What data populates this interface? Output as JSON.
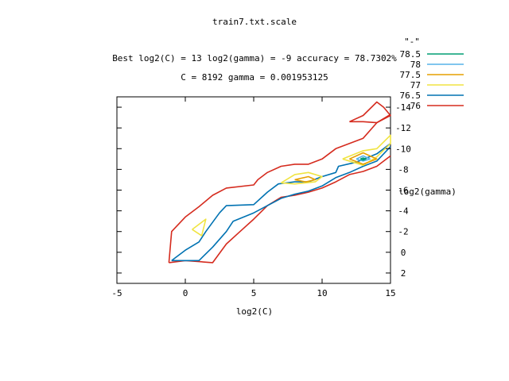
{
  "chart_data": {
    "type": "contour",
    "title": "train7.txt.scale",
    "subtitle_line1": "Best log2(C) = 13  log2(gamma) = -9  accuracy = 78.7302%",
    "subtitle_line2": "C = 8192  gamma = 0.001953125",
    "xlabel": "log2(C)",
    "ylabel": "log2(gamma)",
    "xlim": [
      -5,
      15
    ],
    "ylim": [
      -15,
      3
    ],
    "x_ticks": [
      -5,
      0,
      5,
      10,
      15
    ],
    "y_ticks": [
      -14,
      -12,
      -10,
      -8,
      -6,
      -4,
      -2,
      0,
      2
    ],
    "y_tick_labels": [
      "-14",
      "-12",
      "-10",
      "-8",
      "-6",
      "-4",
      "-2",
      "0",
      "2"
    ],
    "legend_title": "\"-\"",
    "legend": [
      {
        "label": "78.5",
        "color": "#009e73"
      },
      {
        "label": "78",
        "color": "#56b4e9"
      },
      {
        "label": "77.5",
        "color": "#e69f00"
      },
      {
        "label": "77",
        "color": "#f0e442"
      },
      {
        "label": "76.5",
        "color": "#0072b2"
      },
      {
        "label": "76",
        "color": "#d52b1e"
      }
    ],
    "contours": [
      {
        "level": "76",
        "color": "#d52b1e",
        "paths": [
          [
            [
              -1.2,
              1
            ],
            [
              -1,
              -2
            ],
            [
              0,
              -3.4
            ],
            [
              1,
              -4.4
            ],
            [
              2,
              -5.5
            ],
            [
              3,
              -6.2
            ],
            [
              5,
              -6.5
            ],
            [
              5.3,
              -7
            ],
            [
              6,
              -7.7
            ],
            [
              7,
              -8.3
            ],
            [
              8,
              -8.5
            ],
            [
              9,
              -8.5
            ],
            [
              10,
              -9
            ],
            [
              11,
              -10
            ],
            [
              13,
              -11
            ],
            [
              14,
              -12.5
            ],
            [
              15,
              -13.3
            ]
          ],
          [
            [
              -1.2,
              1
            ],
            [
              0,
              0.8
            ],
            [
              1,
              0.9
            ],
            [
              2,
              1
            ],
            [
              3,
              -0.8
            ],
            [
              4,
              -2
            ],
            [
              5,
              -3.2
            ],
            [
              6,
              -4.5
            ],
            [
              7,
              -5.3
            ],
            [
              8,
              -5.5
            ],
            [
              9,
              -5.8
            ],
            [
              10,
              -6.2
            ],
            [
              11,
              -6.8
            ],
            [
              12,
              -7.5
            ],
            [
              13,
              -7.8
            ],
            [
              14,
              -8.3
            ],
            [
              15,
              -9.3
            ]
          ],
          [
            [
              12,
              -12.6
            ],
            [
              13,
              -13.2
            ],
            [
              14,
              -14.5
            ],
            [
              14.5,
              -14
            ],
            [
              15,
              -13.2
            ],
            [
              14,
              -12.5
            ],
            [
              13,
              -12.6
            ],
            [
              12,
              -12.6
            ]
          ]
        ]
      },
      {
        "level": "76.5",
        "color": "#0072b2",
        "paths": [
          [
            [
              -1,
              0.8
            ],
            [
              0,
              -0.2
            ],
            [
              1,
              -1
            ],
            [
              1.5,
              -2
            ],
            [
              2.5,
              -3.8
            ],
            [
              3,
              -4.5
            ],
            [
              5,
              -4.6
            ],
            [
              6,
              -5.8
            ],
            [
              6.8,
              -6.6
            ],
            [
              8,
              -6.8
            ],
            [
              9,
              -6.8
            ],
            [
              10,
              -7.3
            ],
            [
              11,
              -7.7
            ],
            [
              11.2,
              -8.3
            ],
            [
              12.5,
              -8.7
            ],
            [
              14,
              -9.5
            ],
            [
              15,
              -10.5
            ]
          ],
          [
            [
              -1,
              0.8
            ],
            [
              1,
              0.8
            ],
            [
              2,
              -0.5
            ],
            [
              3,
              -2
            ],
            [
              3.5,
              -3
            ],
            [
              5,
              -3.8
            ],
            [
              6,
              -4.5
            ],
            [
              7,
              -5.2
            ],
            [
              8,
              -5.6
            ],
            [
              9,
              -5.9
            ],
            [
              10,
              -6.4
            ],
            [
              11,
              -7.2
            ],
            [
              12,
              -7.7
            ],
            [
              13,
              -8.3
            ],
            [
              14,
              -8.8
            ],
            [
              15,
              -10.2
            ]
          ]
        ]
      },
      {
        "level": "77",
        "color": "#f0e442",
        "paths": [
          [
            [
              0.5,
              -2.2
            ],
            [
              1.5,
              -3.2
            ],
            [
              1.2,
              -1.6
            ],
            [
              0.5,
              -2.2
            ]
          ],
          [
            [
              7,
              -6.7
            ],
            [
              8,
              -7.5
            ],
            [
              9,
              -7.7
            ],
            [
              10,
              -7.3
            ],
            [
              9.5,
              -6.8
            ],
            [
              8,
              -6.6
            ],
            [
              7,
              -6.7
            ]
          ],
          [
            [
              11.5,
              -9
            ],
            [
              13,
              -9.8
            ],
            [
              14,
              -10
            ],
            [
              15,
              -11.3
            ],
            [
              15,
              -10.5
            ],
            [
              14,
              -9.2
            ],
            [
              13,
              -8.4
            ],
            [
              11.5,
              -9
            ]
          ]
        ]
      },
      {
        "level": "77.5",
        "color": "#e69f00",
        "paths": [
          [
            [
              8,
              -7
            ],
            [
              9,
              -7.3
            ],
            [
              9.5,
              -7
            ],
            [
              8.8,
              -6.8
            ],
            [
              8,
              -7
            ]
          ],
          [
            [
              12,
              -9
            ],
            [
              13,
              -9.6
            ],
            [
              14,
              -9
            ],
            [
              13,
              -8.5
            ],
            [
              12,
              -9
            ]
          ]
        ]
      },
      {
        "level": "78",
        "color": "#56b4e9",
        "paths": [
          [
            [
              12.5,
              -9
            ],
            [
              13,
              -9.3
            ],
            [
              13.5,
              -9
            ],
            [
              13,
              -8.8
            ],
            [
              12.5,
              -9
            ]
          ]
        ]
      },
      {
        "level": "78.5",
        "color": "#009e73",
        "paths": [
          [
            [
              12.8,
              -9
            ],
            [
              13,
              -9.1
            ],
            [
              13.2,
              -9
            ],
            [
              13,
              -8.9
            ],
            [
              12.8,
              -9
            ]
          ]
        ]
      }
    ]
  }
}
